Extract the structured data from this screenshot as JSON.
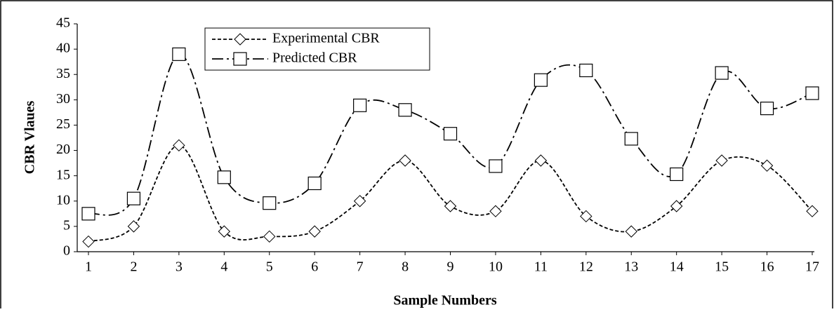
{
  "chart_data": {
    "type": "line",
    "x_label": "Sample Numbers",
    "y_label": "CBR Vlaues",
    "categories": [
      "1",
      "2",
      "3",
      "4",
      "5",
      "6",
      "7",
      "8",
      "9",
      "10",
      "11",
      "12",
      "13",
      "14",
      "15",
      "16",
      "17"
    ],
    "series": [
      {
        "name": "Experimental CBR",
        "color": "#000000",
        "marker": "diamond",
        "dash": "short",
        "values": [
          2,
          5,
          21,
          4,
          3,
          4,
          10,
          18,
          9,
          8,
          18,
          7,
          4,
          9,
          18,
          17,
          8
        ]
      },
      {
        "name": "Predicted CBR",
        "color": "#000000",
        "marker": "square",
        "dash": "dash-dot",
        "values": [
          7.5,
          10.5,
          39,
          14.7,
          9.6,
          13.5,
          28.9,
          28,
          23.3,
          16.9,
          33.9,
          35.8,
          22.3,
          15.3,
          35.3,
          28.3,
          31.3
        ]
      }
    ],
    "ylim": [
      0,
      45
    ],
    "yticks": [
      0,
      5,
      10,
      15,
      20,
      25,
      30,
      35,
      40,
      45
    ],
    "grid": false,
    "smooth": true,
    "legend": "top-left"
  }
}
